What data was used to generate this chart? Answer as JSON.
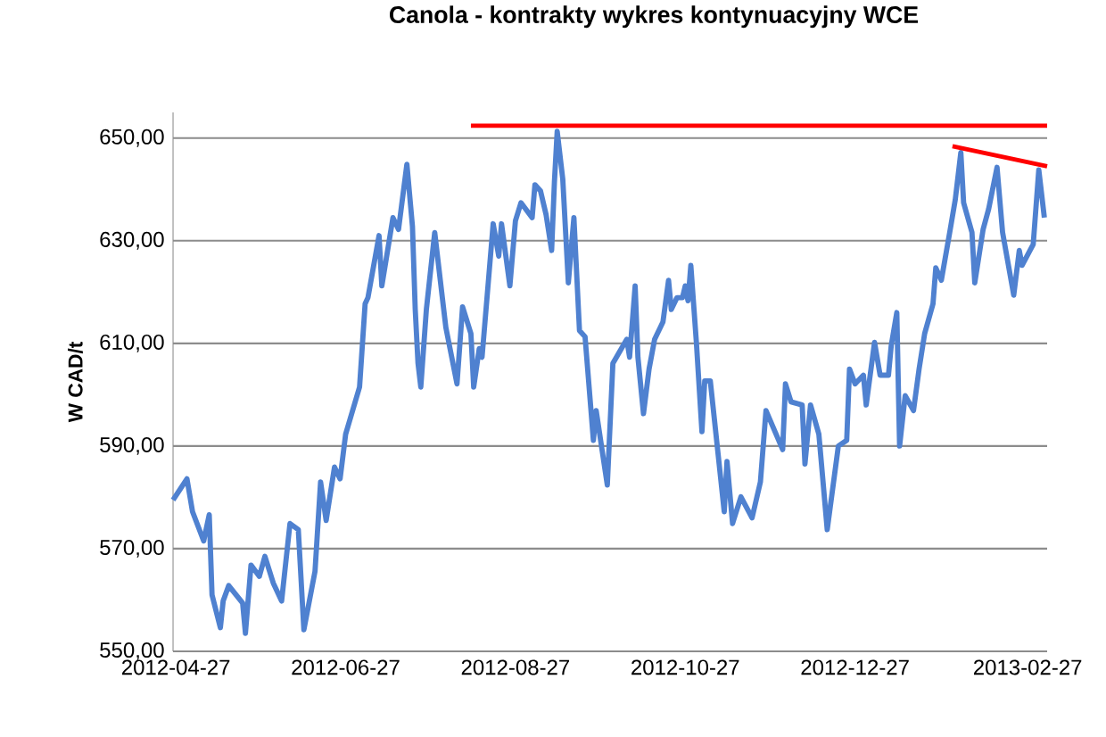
{
  "chart_data": {
    "type": "line",
    "title": "Canola - kontrakty  wykres kontynuacyjny WCE",
    "ylabel": "W CAD/t",
    "xlim": [
      "2012-04-26",
      "2013-03-06"
    ],
    "ylim": [
      550,
      655
    ],
    "xticks": [
      "2012-04-27",
      "2012-06-27",
      "2012-08-27",
      "2012-10-27",
      "2012-12-27",
      "2013-02-27"
    ],
    "yticks": [
      {
        "value": 550,
        "label": "550,00"
      },
      {
        "value": 570,
        "label": "570,00"
      },
      {
        "value": 590,
        "label": "590,00"
      },
      {
        "value": 610,
        "label": "610,00"
      },
      {
        "value": 630,
        "label": "630,00"
      },
      {
        "value": 650,
        "label": "650,00"
      }
    ],
    "grid": "y",
    "line_style": "solid",
    "series": [
      {
        "color": "#4f81d0",
        "x": [
          "2012-04-26",
          "2012-05-01",
          "2012-05-03",
          "2012-05-07",
          "2012-05-09",
          "2012-05-10",
          "2012-05-13",
          "2012-05-14",
          "2012-05-16",
          "2012-05-21",
          "2012-05-22",
          "2012-05-24",
          "2012-05-27",
          "2012-05-29",
          "2012-06-01",
          "2012-06-04",
          "2012-06-07",
          "2012-06-10",
          "2012-06-12",
          "2012-06-16",
          "2012-06-18",
          "2012-06-20",
          "2012-06-23",
          "2012-06-25",
          "2012-06-27",
          "2012-07-02",
          "2012-07-04",
          "2012-07-05",
          "2012-07-09",
          "2012-07-10",
          "2012-07-14",
          "2012-07-16",
          "2012-07-19",
          "2012-07-21",
          "2012-07-22",
          "2012-07-23",
          "2012-07-24",
          "2012-07-26",
          "2012-07-29",
          "2012-08-01",
          "2012-08-02",
          "2012-08-06",
          "2012-08-08",
          "2012-08-11",
          "2012-08-12",
          "2012-08-14",
          "2012-08-15",
          "2012-08-19",
          "2012-08-21",
          "2012-08-22",
          "2012-08-25",
          "2012-08-27",
          "2012-08-29",
          "2012-09-02",
          "2012-09-03",
          "2012-09-05",
          "2012-09-07",
          "2012-09-09",
          "2012-09-10",
          "2012-09-11",
          "2012-09-13",
          "2012-09-15",
          "2012-09-17",
          "2012-09-19",
          "2012-09-21",
          "2012-09-24",
          "2012-09-25",
          "2012-09-29",
          "2012-10-01",
          "2012-10-06",
          "2012-10-07",
          "2012-10-09",
          "2012-10-10",
          "2012-10-12",
          "2012-10-14",
          "2012-10-16",
          "2012-10-19",
          "2012-10-21",
          "2012-10-22",
          "2012-10-24",
          "2012-10-26",
          "2012-10-27",
          "2012-10-28",
          "2012-10-29",
          "2012-10-31",
          "2012-11-02",
          "2012-11-03",
          "2012-11-05",
          "2012-11-10",
          "2012-11-11",
          "2012-11-13",
          "2012-11-16",
          "2012-11-20",
          "2012-11-23",
          "2012-11-25",
          "2012-12-01",
          "2012-12-02",
          "2012-12-04",
          "2012-12-08",
          "2012-12-09",
          "2012-12-11",
          "2012-12-14",
          "2012-12-17",
          "2012-12-21",
          "2012-12-24",
          "2012-12-25",
          "2012-12-27",
          "2012-12-30",
          "2012-12-31",
          "2013-01-03",
          "2013-01-05",
          "2013-01-08",
          "2013-01-09",
          "2013-01-11",
          "2013-01-12",
          "2013-01-14",
          "2013-01-17",
          "2013-01-19",
          "2013-01-21",
          "2013-01-24",
          "2013-01-25",
          "2013-01-27",
          "2013-01-30",
          "2013-02-01",
          "2013-02-03",
          "2013-02-04",
          "2013-02-07",
          "2013-02-08",
          "2013-02-11",
          "2013-02-13",
          "2013-02-16",
          "2013-02-18",
          "2013-02-22",
          "2013-02-24",
          "2013-02-25",
          "2013-03-01",
          "2013-03-03",
          "2013-03-05"
        ],
        "values": [
          579.5,
          583.6,
          577.2,
          571.5,
          576.6,
          561,
          554.6,
          559.8,
          562.8,
          559.4,
          553.5,
          566.8,
          564.6,
          568.5,
          563.3,
          559.8,
          574.9,
          573.7,
          554.2,
          565.6,
          583,
          575.5,
          585.9,
          583.6,
          592.3,
          601.5,
          617.7,
          618.9,
          631,
          621.2,
          634.5,
          632.2,
          644.9,
          632.8,
          616.6,
          606.1,
          601.5,
          616.6,
          631.6,
          617.7,
          613.1,
          602.1,
          617.1,
          611.9,
          601.5,
          609,
          607.3,
          633.3,
          627,
          633.3,
          621.2,
          633.9,
          637.4,
          634.5,
          640.9,
          639.7,
          635.1,
          628.1,
          641.4,
          651.3,
          642,
          621.8,
          634.5,
          612.5,
          611.3,
          591.1,
          596.9,
          582.4,
          606.1,
          610.8,
          607.3,
          621.2,
          607.3,
          596.3,
          605,
          610.8,
          614.2,
          622.3,
          616.6,
          618.9,
          618.9,
          621.2,
          618.3,
          625.2,
          610.2,
          592.8,
          602.7,
          602.7,
          577.2,
          587,
          574.9,
          580.1,
          576,
          583,
          596.9,
          589.3,
          602.1,
          598.6,
          598,
          586.5,
          598,
          592.3,
          573.7,
          590,
          591.1,
          605,
          602.1,
          603.8,
          598,
          610.2,
          603.8,
          603.8,
          609.6,
          616,
          590,
          599.8,
          596.9,
          605,
          611.9,
          617.7,
          624.7,
          622.3,
          631.6,
          638,
          647.2,
          637.4,
          631.6,
          621.8,
          632.2,
          636.2,
          644.3,
          631.6,
          619.4,
          628.1,
          625.2,
          629.3,
          643.8,
          634.5
        ]
      },
      {
        "color": "#ff0000",
        "x": [
          "2012-08-11",
          "2013-03-06"
        ],
        "values": [
          652.4,
          652.4
        ]
      },
      {
        "color": "#ff0000",
        "x": [
          "2013-01-31",
          "2013-03-06"
        ],
        "values": [
          648.4,
          644.5
        ]
      }
    ]
  }
}
